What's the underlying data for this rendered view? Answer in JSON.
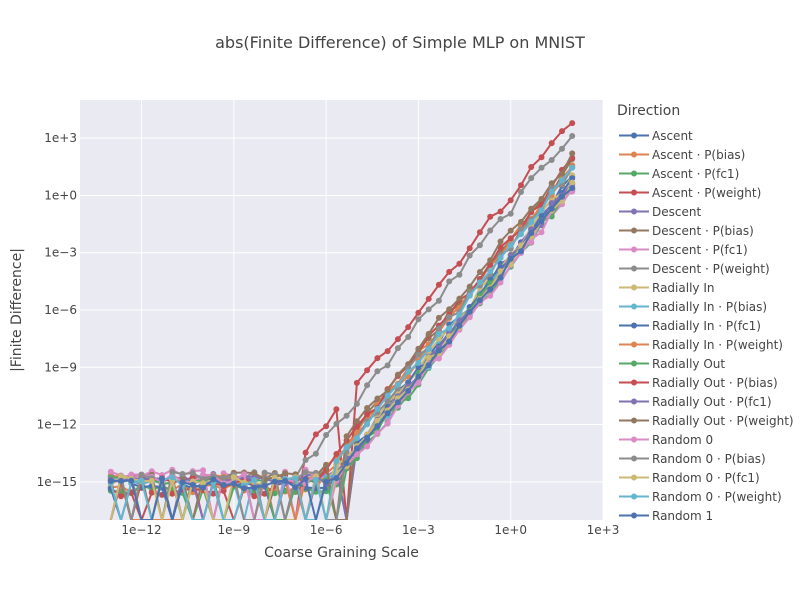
{
  "chart_data": {
    "type": "line",
    "title": "abs(Finite Difference) of Simple MLP on MNIST",
    "xlabel": "Coarse Graining Scale",
    "ylabel": "|Finite Difference|",
    "xscale": "log",
    "yscale": "log",
    "xlim": [
      1e-14,
      1000.0
    ],
    "ylim": [
      1e-17,
      100000.0
    ],
    "x_ticks": [
      "1e−12",
      "1e−9",
      "1e−6",
      "1e−3",
      "1e+0",
      "1e+3"
    ],
    "y_ticks": [
      "1e−15",
      "1e−12",
      "1e−9",
      "1e−6",
      "1e−3",
      "1e+0",
      "1e+3"
    ],
    "grid": true,
    "legend_title": "Direction",
    "legend_position": "right",
    "x_range_points": [
      1e-13,
      100
    ],
    "series": [
      {
        "name": "Ascent",
        "color": "#4c72b0",
        "floor": 1e-15,
        "onset": 1e-06,
        "slope": 2.0,
        "y_end": 10
      },
      {
        "name": "Ascent · P(bias)",
        "color": "#dd8452",
        "floor": 5e-16,
        "onset": 1e-06,
        "slope": 2.0,
        "y_end": 30
      },
      {
        "name": "Ascent · P(fc1)",
        "color": "#55a868",
        "floor": 4e-16,
        "onset": 1e-06,
        "slope": 2.0,
        "y_end": 2
      },
      {
        "name": "Ascent · P(weight)",
        "color": "#c44e52",
        "floor": 3e-16,
        "onset": 1e-06,
        "slope": 2.0,
        "y_end": 10000
      },
      {
        "name": "Descent",
        "color": "#8172b3",
        "floor": 1.5e-15,
        "onset": 1e-06,
        "slope": 2.0,
        "y_end": 5
      },
      {
        "name": "Descent · P(bias)",
        "color": "#937860",
        "floor": 2e-15,
        "onset": 1e-06,
        "slope": 2.0,
        "y_end": 50
      },
      {
        "name": "Descent · P(fc1)",
        "color": "#da8bc3",
        "floor": 2.5e-15,
        "onset": 1e-06,
        "slope": 2.0,
        "y_end": 3
      },
      {
        "name": "Descent · P(weight)",
        "color": "#8c8c8c",
        "floor": 2e-15,
        "onset": 1e-06,
        "slope": 2.0,
        "y_end": 2000
      },
      {
        "name": "Radially In",
        "color": "#ccb974",
        "floor": 1e-15,
        "onset": 1e-06,
        "slope": 2.0,
        "y_end": 8
      },
      {
        "name": "Radially In · P(bias)",
        "color": "#64b5cd",
        "floor": 1.2e-15,
        "onset": 1e-06,
        "slope": 2.0,
        "y_end": 4
      },
      {
        "name": "Radially In · P(fc1)",
        "color": "#4c72b0",
        "floor": 8e-16,
        "onset": 1e-06,
        "slope": 2.0,
        "y_end": 6
      },
      {
        "name": "Radially In · P(weight)",
        "color": "#dd8452",
        "floor": 1.5e-15,
        "onset": 1e-06,
        "slope": 2.0,
        "y_end": 40
      },
      {
        "name": "Radially Out",
        "color": "#55a868",
        "floor": 1e-15,
        "onset": 1e-06,
        "slope": 2.0,
        "y_end": 3
      },
      {
        "name": "Radially Out · P(bias)",
        "color": "#c44e52",
        "floor": 1e-15,
        "onset": 1e-06,
        "slope": 2.0,
        "y_end": 60
      },
      {
        "name": "Radially Out · P(fc1)",
        "color": "#8172b3",
        "floor": 1.3e-15,
        "onset": 1e-06,
        "slope": 2.0,
        "y_end": 5
      },
      {
        "name": "Radially Out · P(weight)",
        "color": "#937860",
        "floor": 1.8e-15,
        "onset": 1e-06,
        "slope": 2.0,
        "y_end": 100
      },
      {
        "name": "Random 0",
        "color": "#da8bc3",
        "floor": 1.5e-15,
        "onset": 1e-06,
        "slope": 2.0,
        "y_end": 2
      },
      {
        "name": "Random 0 · P(bias)",
        "color": "#8c8c8c",
        "floor": 2e-15,
        "onset": 1e-06,
        "slope": 2.0,
        "y_end": 30
      },
      {
        "name": "Random 0 · P(fc1)",
        "color": "#ccb974",
        "floor": 1.2e-15,
        "onset": 1e-06,
        "slope": 2.0,
        "y_end": 4
      },
      {
        "name": "Random 0 · P(weight)",
        "color": "#64b5cd",
        "floor": 1e-15,
        "onset": 1e-06,
        "slope": 2.0,
        "y_end": 20
      },
      {
        "name": "Random 1",
        "color": "#4c72b0",
        "floor": 8e-16,
        "onset": 1e-06,
        "slope": 2.0,
        "y_end": 3
      }
    ]
  }
}
